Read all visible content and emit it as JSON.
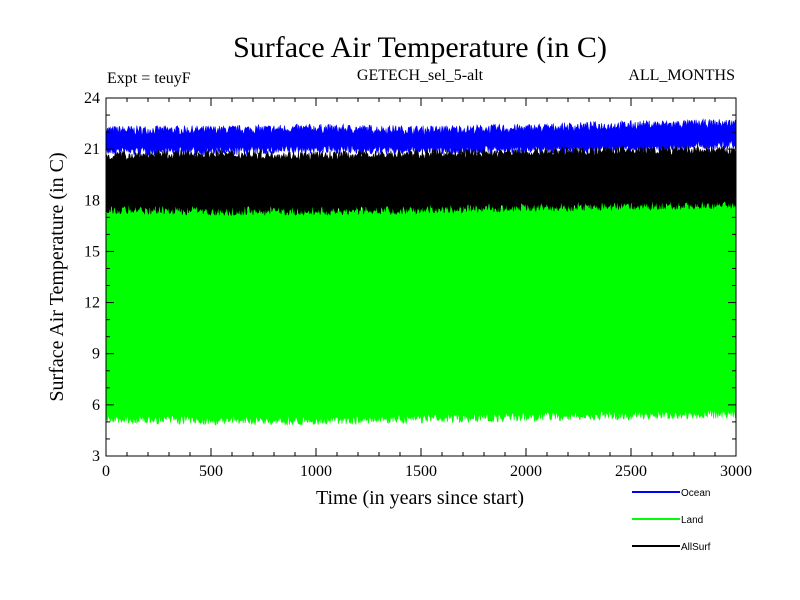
{
  "chart_data": {
    "type": "area",
    "title": "Surface Air Temperature (in C)",
    "subtitle_left": "Expt = teuyF",
    "subtitle_center": "GETECH_sel_5-alt",
    "subtitle_right": "ALL_MONTHS",
    "xlabel": "Time (in years since start)",
    "ylabel": "Surface Air Temperature (in C)",
    "xlim": [
      0,
      3000
    ],
    "ylim": [
      3,
      24
    ],
    "xticks": [
      0,
      500,
      1000,
      1500,
      2000,
      2500,
      3000
    ],
    "yticks": [
      3,
      6,
      9,
      12,
      15,
      18,
      21,
      24
    ],
    "grid": false,
    "legend_position": "bottom-right",
    "series": [
      {
        "name": "Ocean",
        "color": "#0000ff",
        "lower": [
          21.0,
          21.0,
          21.1,
          21.0,
          21.1,
          21.1,
          21.4
        ],
        "upper": [
          22.0,
          22.0,
          22.1,
          22.0,
          22.1,
          22.3,
          22.4
        ]
      },
      {
        "name": "Land",
        "color": "#00ff00",
        "lower": [
          5.3,
          5.2,
          5.2,
          5.3,
          5.4,
          5.5,
          5.6
        ],
        "upper": [
          17.5,
          17.5,
          17.4,
          17.6,
          17.6,
          17.7,
          17.8
        ]
      },
      {
        "name": "AllSurf",
        "color": "#000000",
        "lower": [
          17.6,
          17.5,
          17.5,
          17.6,
          17.7,
          17.8,
          17.9
        ],
        "upper": [
          20.5,
          20.6,
          20.5,
          20.6,
          20.7,
          20.8,
          20.8
        ]
      }
    ]
  }
}
